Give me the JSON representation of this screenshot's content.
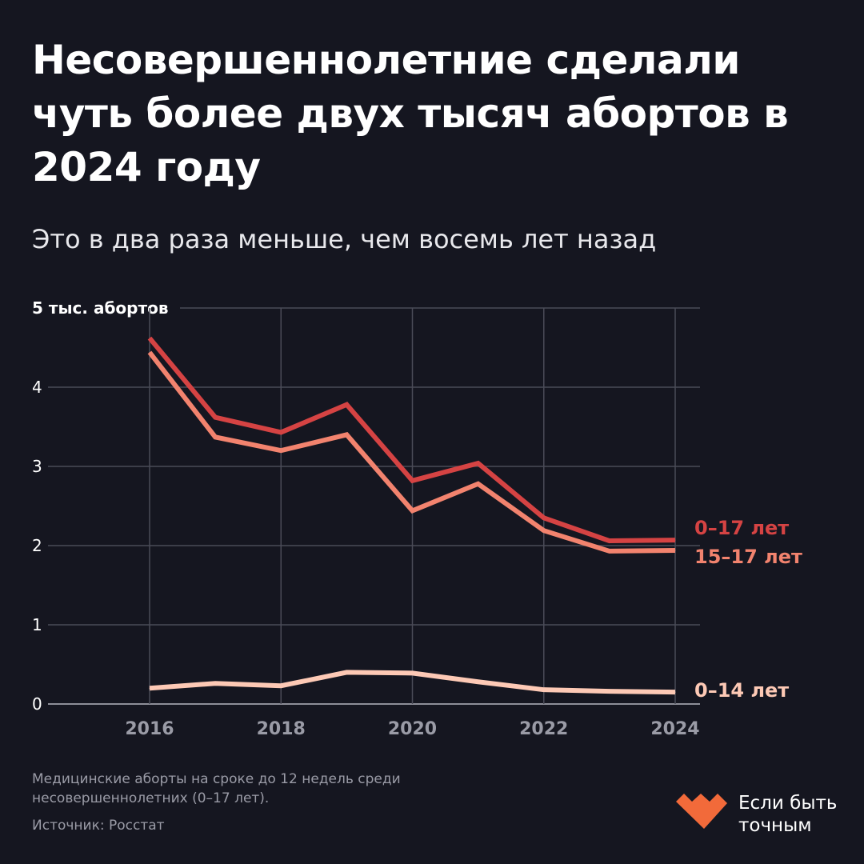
{
  "title": "Несовершеннолетние сделали чуть более двух тысяч абортов в 2024 году",
  "subtitle": "Это в два раза меньше, чем восемь лет назад",
  "footnote": "Медицинские аборты на сроке до 12 недель среди несовершеннолетних (0–17 лет).",
  "source": "Источник: Росстат",
  "logo": {
    "text": "Если быть точным",
    "color": "#f26a3a"
  },
  "chart_data": {
    "type": "line",
    "title": "",
    "ylabel": "5 тыс. абортов",
    "ylim": [
      0,
      5
    ],
    "xlim": [
      2015,
      2024
    ],
    "yticks": [
      "0",
      "1",
      "2",
      "3",
      "4",
      "5 тыс. абортов"
    ],
    "xticks": [
      "2016",
      "2018",
      "2020",
      "2022",
      "2024"
    ],
    "grid": true,
    "x": [
      2016,
      2017,
      2018,
      2019,
      2020,
      2021,
      2022,
      2023,
      2024
    ],
    "series": [
      {
        "name": "0–17 лет",
        "color": "#d54343",
        "values": [
          4.62,
          3.62,
          3.43,
          3.78,
          2.82,
          3.04,
          2.35,
          2.06,
          2.07
        ]
      },
      {
        "name": "15–17 лет",
        "color": "#f2836e",
        "values": [
          4.44,
          3.37,
          3.2,
          3.4,
          2.44,
          2.78,
          2.19,
          1.93,
          1.94
        ]
      },
      {
        "name": "0–14 лет",
        "color": "#fdc9b5",
        "values": [
          0.2,
          0.26,
          0.23,
          0.4,
          0.39,
          0.28,
          0.18,
          0.16,
          0.15
        ]
      }
    ]
  }
}
